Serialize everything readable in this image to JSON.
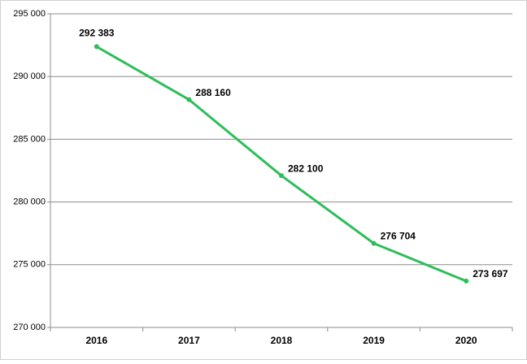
{
  "chart_data": {
    "type": "line",
    "categories": [
      "2016",
      "2017",
      "2018",
      "2019",
      "2020"
    ],
    "series": [
      {
        "color": "#2ebd5a",
        "values": [
          292383,
          288160,
          282100,
          276704,
          273697
        ],
        "value_labels": [
          "292 383",
          "288 160",
          "282 100",
          "276 704",
          "273 697"
        ]
      }
    ],
    "ylim": [
      270000,
      295000
    ],
    "yticks": [
      {
        "value": 270000,
        "label": "270 000"
      },
      {
        "value": 275000,
        "label": "275 000"
      },
      {
        "value": 280000,
        "label": "280 000"
      },
      {
        "value": 285000,
        "label": "285 000"
      },
      {
        "value": 290000,
        "label": "290 000"
      },
      {
        "value": 295000,
        "label": "295 000"
      }
    ],
    "grid": true
  }
}
